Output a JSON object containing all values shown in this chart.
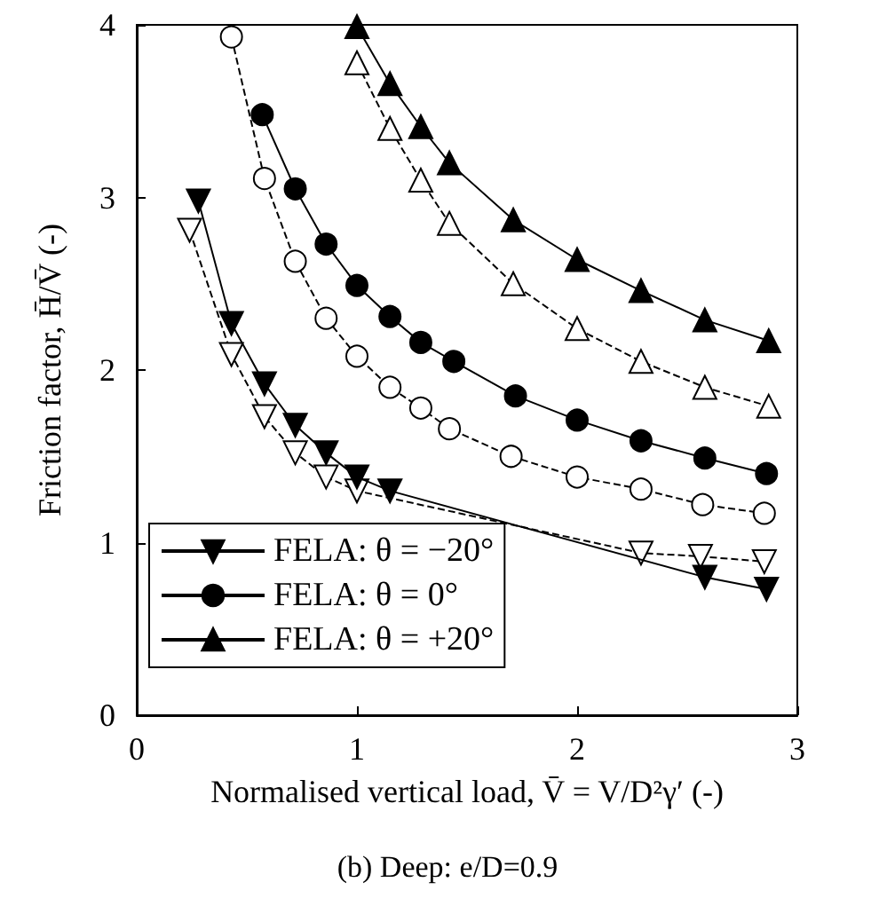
{
  "chart_data": {
    "type": "line",
    "title": "(b) Deep: e/D=0.9",
    "xlabel": "Normalised vertical load, V̄ = V/D²γ′ (-)",
    "ylabel": "Friction factor, H̄/V̄ (-)",
    "xlim": [
      0,
      3
    ],
    "xticks": [
      0,
      1,
      2,
      3
    ],
    "ylim": [
      0,
      4
    ],
    "yticks": [
      0,
      1,
      2,
      3,
      4
    ],
    "grid": false,
    "legend": "bottom left",
    "series": [
      {
        "name": "FELA: θ = −20°",
        "color": "#000000",
        "marker": "triangle_down",
        "line_style": "solid",
        "x": [
          0.28,
          0.43,
          0.58,
          0.72,
          0.86,
          1.0,
          1.15,
          1.29,
          1.43,
          1.71,
          2.0,
          2.29,
          2.58,
          2.86
        ],
        "values": [
          2.98,
          2.27,
          1.92,
          1.68,
          1.52,
          1.38,
          1.3,
          null,
          null,
          null,
          null,
          null,
          0.8,
          0.73
        ]
      },
      {
        "name": "FELA: θ = 0°",
        "color": "#000000",
        "marker": "circle",
        "line_style": "solid",
        "x": [
          0.57,
          0.72,
          0.86,
          1.0,
          1.15,
          1.29,
          1.44,
          1.72,
          2.0,
          2.29,
          2.58,
          2.86
        ],
        "values": [
          3.48,
          3.05,
          2.73,
          2.49,
          2.31,
          2.16,
          2.05,
          1.85,
          1.71,
          1.59,
          1.49,
          1.4
        ]
      },
      {
        "name": "FELA: θ = +20°",
        "color": "#000000",
        "marker": "triangle",
        "line_style": "solid",
        "x": [
          1.0,
          1.15,
          1.29,
          1.42,
          1.71,
          2.0,
          2.29,
          2.58,
          2.87
        ],
        "values": [
          3.99,
          3.66,
          3.41,
          3.2,
          2.87,
          2.64,
          2.46,
          2.29,
          2.17
        ]
      },
      {
        "color": "#000000",
        "marker": "triangle_down",
        "line_style": "dashed",
        "x": [
          0.24,
          0.43,
          0.58,
          0.72,
          0.86,
          1.0,
          1.15,
          1.29,
          1.43,
          1.71,
          2.0,
          2.29,
          2.56,
          2.85
        ],
        "values": [
          2.81,
          2.09,
          1.73,
          1.52,
          1.38,
          1.3,
          null,
          null,
          null,
          null,
          null,
          0.94,
          0.92,
          0.89
        ]
      },
      {
        "color": "#000000",
        "marker": "circle",
        "line_style": "dashed",
        "x": [
          0.43,
          0.58,
          0.72,
          0.86,
          1.0,
          1.15,
          1.29,
          1.42,
          1.7,
          2.0,
          2.29,
          2.57,
          2.85
        ],
        "values": [
          3.93,
          3.11,
          2.63,
          2.3,
          2.08,
          1.9,
          1.78,
          1.66,
          1.5,
          1.38,
          1.31,
          1.22,
          1.17
        ]
      },
      {
        "color": "#000000",
        "marker": "triangle",
        "line_style": "dashed",
        "x": [
          1.0,
          1.15,
          1.29,
          1.42,
          1.71,
          2.0,
          2.29,
          2.58,
          2.87
        ],
        "values": [
          3.78,
          3.4,
          3.1,
          2.85,
          2.5,
          2.24,
          2.05,
          1.9,
          1.79
        ]
      }
    ]
  }
}
